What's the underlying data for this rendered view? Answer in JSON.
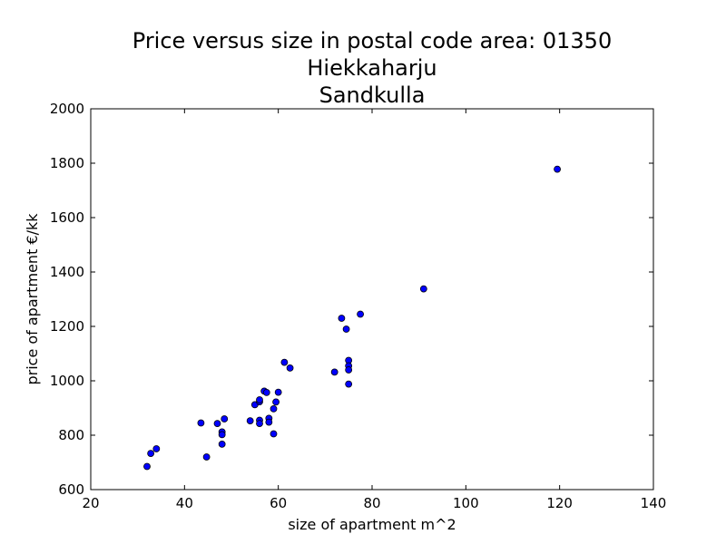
{
  "chart_data": {
    "type": "scatter",
    "title": [
      "Price versus size in postal code area: 01350",
      "Hiekkaharju",
      "Sandkulla"
    ],
    "xlabel": "size of apartment m^2",
    "ylabel": "price of apartment €/kk",
    "xlim": [
      20,
      140
    ],
    "ylim": [
      600,
      2000
    ],
    "xticks": [
      20,
      40,
      60,
      80,
      100,
      120,
      140
    ],
    "yticks": [
      600,
      800,
      1000,
      1200,
      1400,
      1600,
      1800,
      2000
    ],
    "grid": false,
    "marker_color": "#0000ff",
    "marker_edge_color": "#000000",
    "points": [
      {
        "x": 32,
        "y": 685
      },
      {
        "x": 32.8,
        "y": 733
      },
      {
        "x": 34,
        "y": 750
      },
      {
        "x": 43.5,
        "y": 845
      },
      {
        "x": 44.7,
        "y": 720
      },
      {
        "x": 47,
        "y": 843
      },
      {
        "x": 48,
        "y": 812
      },
      {
        "x": 48,
        "y": 802
      },
      {
        "x": 48,
        "y": 767
      },
      {
        "x": 48.5,
        "y": 860
      },
      {
        "x": 54,
        "y": 853
      },
      {
        "x": 55,
        "y": 912
      },
      {
        "x": 56,
        "y": 923
      },
      {
        "x": 56,
        "y": 930
      },
      {
        "x": 56,
        "y": 855
      },
      {
        "x": 56,
        "y": 843
      },
      {
        "x": 57,
        "y": 962
      },
      {
        "x": 57.5,
        "y": 957
      },
      {
        "x": 58,
        "y": 862
      },
      {
        "x": 58,
        "y": 848
      },
      {
        "x": 59,
        "y": 897
      },
      {
        "x": 59,
        "y": 805
      },
      {
        "x": 59.5,
        "y": 922
      },
      {
        "x": 60,
        "y": 958
      },
      {
        "x": 61.3,
        "y": 1068
      },
      {
        "x": 62.5,
        "y": 1047
      },
      {
        "x": 72,
        "y": 1032
      },
      {
        "x": 73.5,
        "y": 1230
      },
      {
        "x": 74.5,
        "y": 1190
      },
      {
        "x": 75,
        "y": 1075
      },
      {
        "x": 75,
        "y": 1055
      },
      {
        "x": 75,
        "y": 1040
      },
      {
        "x": 75,
        "y": 988
      },
      {
        "x": 77.5,
        "y": 1245
      },
      {
        "x": 91,
        "y": 1338
      },
      {
        "x": 119.5,
        "y": 1778
      }
    ]
  }
}
